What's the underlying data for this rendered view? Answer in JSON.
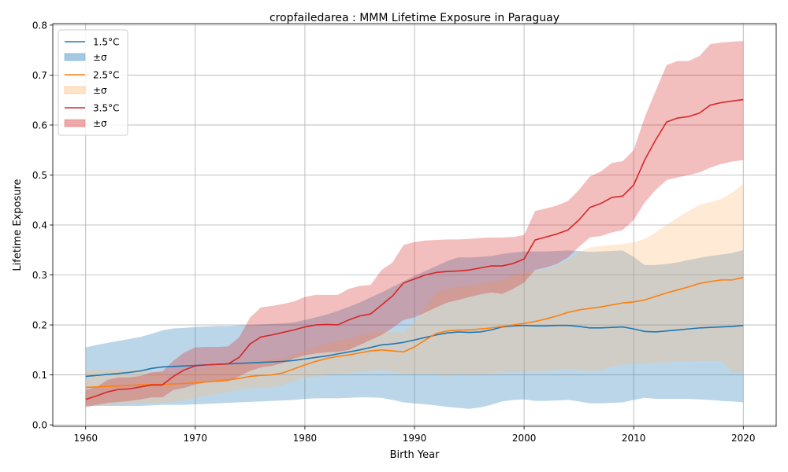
{
  "chart_data": {
    "type": "line",
    "title": "cropfailedarea : MMM Lifetime Exposure in Paraguay",
    "xlabel": "Birth Year",
    "ylabel": "Lifetime Exposure",
    "xlim": [
      1957,
      2023
    ],
    "ylim": [
      -0.003,
      0.803
    ],
    "xticks": [
      1960,
      1970,
      1980,
      1990,
      2000,
      2010,
      2020
    ],
    "xtick_labels": [
      "1960",
      "1970",
      "1980",
      "1990",
      "2000",
      "2010",
      "2020"
    ],
    "yticks": [
      0.0,
      0.1,
      0.2,
      0.3,
      0.4,
      0.5,
      0.6,
      0.7,
      0.8
    ],
    "ytick_labels": [
      "0.0",
      "0.1",
      "0.2",
      "0.3",
      "0.4",
      "0.5",
      "0.6",
      "0.7",
      "0.8"
    ],
    "grid": true,
    "legend_position": "top-left",
    "x": [
      1960,
      1961,
      1962,
      1963,
      1964,
      1965,
      1966,
      1967,
      1968,
      1969,
      1970,
      1971,
      1972,
      1973,
      1974,
      1975,
      1976,
      1977,
      1978,
      1979,
      1980,
      1981,
      1982,
      1983,
      1984,
      1985,
      1986,
      1987,
      1988,
      1989,
      1990,
      1991,
      1992,
      1993,
      1994,
      1995,
      1996,
      1997,
      1998,
      1999,
      2000,
      2001,
      2002,
      2003,
      2004,
      2005,
      2006,
      2007,
      2008,
      2009,
      2010,
      2011,
      2012,
      2013,
      2014,
      2015,
      2016,
      2017,
      2018,
      2019,
      2020
    ],
    "series": [
      {
        "name": "1.5°C",
        "band_label": "±σ",
        "color": "#1f77b4",
        "fill": "#1f77b4",
        "values": [
          0.097,
          0.099,
          0.101,
          0.103,
          0.105,
          0.108,
          0.113,
          0.116,
          0.117,
          0.118,
          0.119,
          0.12,
          0.121,
          0.122,
          0.123,
          0.124,
          0.125,
          0.126,
          0.127,
          0.129,
          0.132,
          0.135,
          0.138,
          0.142,
          0.146,
          0.15,
          0.155,
          0.16,
          0.162,
          0.165,
          0.17,
          0.175,
          0.18,
          0.184,
          0.186,
          0.185,
          0.186,
          0.19,
          0.196,
          0.198,
          0.199,
          0.198,
          0.198,
          0.199,
          0.199,
          0.197,
          0.194,
          0.194,
          0.195,
          0.196,
          0.192,
          0.187,
          0.186,
          0.188,
          0.19,
          0.192,
          0.194,
          0.195,
          0.196,
          0.197,
          0.199
        ],
        "upper": [
          0.155,
          0.16,
          0.164,
          0.168,
          0.172,
          0.176,
          0.182,
          0.189,
          0.193,
          0.194,
          0.196,
          0.197,
          0.198,
          0.198,
          0.199,
          0.2,
          0.201,
          0.202,
          0.203,
          0.205,
          0.21,
          0.215,
          0.221,
          0.228,
          0.236,
          0.245,
          0.255,
          0.265,
          0.276,
          0.287,
          0.298,
          0.308,
          0.318,
          0.328,
          0.335,
          0.335,
          0.336,
          0.338,
          0.342,
          0.345,
          0.347,
          0.347,
          0.347,
          0.348,
          0.349,
          0.348,
          0.346,
          0.347,
          0.348,
          0.349,
          0.336,
          0.32,
          0.32,
          0.322,
          0.325,
          0.33,
          0.334,
          0.338,
          0.341,
          0.344,
          0.35
        ],
        "lower": [
          0.038,
          0.038,
          0.038,
          0.038,
          0.038,
          0.038,
          0.039,
          0.04,
          0.04,
          0.04,
          0.041,
          0.042,
          0.043,
          0.044,
          0.045,
          0.046,
          0.047,
          0.048,
          0.049,
          0.05,
          0.052,
          0.053,
          0.053,
          0.053,
          0.054,
          0.055,
          0.055,
          0.054,
          0.05,
          0.045,
          0.043,
          0.041,
          0.039,
          0.036,
          0.034,
          0.032,
          0.035,
          0.04,
          0.047,
          0.05,
          0.051,
          0.048,
          0.048,
          0.049,
          0.05,
          0.047,
          0.043,
          0.043,
          0.044,
          0.045,
          0.05,
          0.054,
          0.052,
          0.052,
          0.052,
          0.052,
          0.051,
          0.05,
          0.048,
          0.047,
          0.045
        ]
      },
      {
        "name": "2.5°C",
        "band_label": "±σ",
        "color": "#ff7f0e",
        "fill": "#ffbb78",
        "values": [
          0.075,
          0.076,
          0.077,
          0.078,
          0.079,
          0.08,
          0.081,
          0.081,
          0.082,
          0.083,
          0.084,
          0.086,
          0.088,
          0.09,
          0.093,
          0.097,
          0.099,
          0.1,
          0.104,
          0.112,
          0.12,
          0.127,
          0.133,
          0.137,
          0.14,
          0.144,
          0.148,
          0.15,
          0.148,
          0.146,
          0.156,
          0.17,
          0.183,
          0.188,
          0.19,
          0.19,
          0.192,
          0.194,
          0.197,
          0.2,
          0.203,
          0.207,
          0.212,
          0.218,
          0.225,
          0.23,
          0.233,
          0.236,
          0.24,
          0.244,
          0.246,
          0.25,
          0.257,
          0.264,
          0.27,
          0.276,
          0.283,
          0.287,
          0.29,
          0.29,
          0.295
        ],
        "upper": [
          0.11,
          0.11,
          0.11,
          0.11,
          0.11,
          0.11,
          0.108,
          0.106,
          0.104,
          0.106,
          0.11,
          0.115,
          0.118,
          0.12,
          0.125,
          0.127,
          0.129,
          0.131,
          0.133,
          0.14,
          0.148,
          0.156,
          0.162,
          0.168,
          0.172,
          0.178,
          0.184,
          0.188,
          0.186,
          0.185,
          0.205,
          0.235,
          0.265,
          0.272,
          0.276,
          0.278,
          0.282,
          0.286,
          0.29,
          0.3,
          0.305,
          0.308,
          0.312,
          0.32,
          0.33,
          0.345,
          0.355,
          0.358,
          0.36,
          0.362,
          0.365,
          0.372,
          0.385,
          0.4,
          0.415,
          0.428,
          0.44,
          0.446,
          0.452,
          0.465,
          0.482
        ],
        "lower": [
          0.04,
          0.04,
          0.04,
          0.041,
          0.042,
          0.043,
          0.043,
          0.044,
          0.046,
          0.05,
          0.054,
          0.058,
          0.062,
          0.066,
          0.07,
          0.073,
          0.075,
          0.076,
          0.08,
          0.088,
          0.094,
          0.097,
          0.1,
          0.102,
          0.104,
          0.106,
          0.108,
          0.11,
          0.106,
          0.102,
          0.103,
          0.103,
          0.102,
          0.1,
          0.102,
          0.101,
          0.101,
          0.103,
          0.105,
          0.106,
          0.107,
          0.107,
          0.108,
          0.11,
          0.112,
          0.11,
          0.108,
          0.109,
          0.116,
          0.12,
          0.122,
          0.123,
          0.124,
          0.125,
          0.126,
          0.127,
          0.128,
          0.128,
          0.128,
          0.105,
          0.105
        ]
      },
      {
        "name": "3.5°C",
        "band_label": "±σ",
        "color": "#d62728",
        "fill": "#d62728",
        "values": [
          0.051,
          0.058,
          0.066,
          0.071,
          0.072,
          0.076,
          0.08,
          0.08,
          0.097,
          0.11,
          0.118,
          0.12,
          0.121,
          0.122,
          0.135,
          0.162,
          0.176,
          0.18,
          0.185,
          0.19,
          0.196,
          0.2,
          0.201,
          0.2,
          0.21,
          0.218,
          0.222,
          0.24,
          0.258,
          0.284,
          0.292,
          0.3,
          0.305,
          0.307,
          0.308,
          0.31,
          0.314,
          0.318,
          0.318,
          0.323,
          0.332,
          0.37,
          0.376,
          0.382,
          0.39,
          0.41,
          0.435,
          0.443,
          0.455,
          0.458,
          0.48,
          0.53,
          0.57,
          0.606,
          0.614,
          0.617,
          0.624,
          0.64,
          0.645,
          0.648,
          0.651
        ],
        "upper": [
          0.07,
          0.076,
          0.09,
          0.095,
          0.095,
          0.098,
          0.105,
          0.107,
          0.128,
          0.145,
          0.155,
          0.156,
          0.156,
          0.157,
          0.175,
          0.215,
          0.235,
          0.238,
          0.242,
          0.247,
          0.256,
          0.26,
          0.26,
          0.26,
          0.272,
          0.278,
          0.28,
          0.31,
          0.325,
          0.36,
          0.366,
          0.369,
          0.37,
          0.371,
          0.371,
          0.372,
          0.374,
          0.375,
          0.375,
          0.376,
          0.38,
          0.428,
          0.433,
          0.439,
          0.448,
          0.47,
          0.497,
          0.507,
          0.524,
          0.528,
          0.55,
          0.615,
          0.668,
          0.72,
          0.728,
          0.728,
          0.738,
          0.762,
          0.765,
          0.767,
          0.768
        ],
        "lower": [
          0.035,
          0.04,
          0.044,
          0.046,
          0.048,
          0.051,
          0.055,
          0.055,
          0.07,
          0.074,
          0.081,
          0.085,
          0.086,
          0.087,
          0.097,
          0.108,
          0.115,
          0.118,
          0.124,
          0.133,
          0.139,
          0.143,
          0.145,
          0.146,
          0.15,
          0.16,
          0.17,
          0.18,
          0.194,
          0.21,
          0.215,
          0.225,
          0.235,
          0.245,
          0.25,
          0.256,
          0.261,
          0.265,
          0.262,
          0.272,
          0.285,
          0.31,
          0.315,
          0.322,
          0.335,
          0.356,
          0.375,
          0.378,
          0.385,
          0.39,
          0.41,
          0.445,
          0.47,
          0.49,
          0.495,
          0.5,
          0.505,
          0.515,
          0.522,
          0.527,
          0.53
        ]
      }
    ]
  }
}
